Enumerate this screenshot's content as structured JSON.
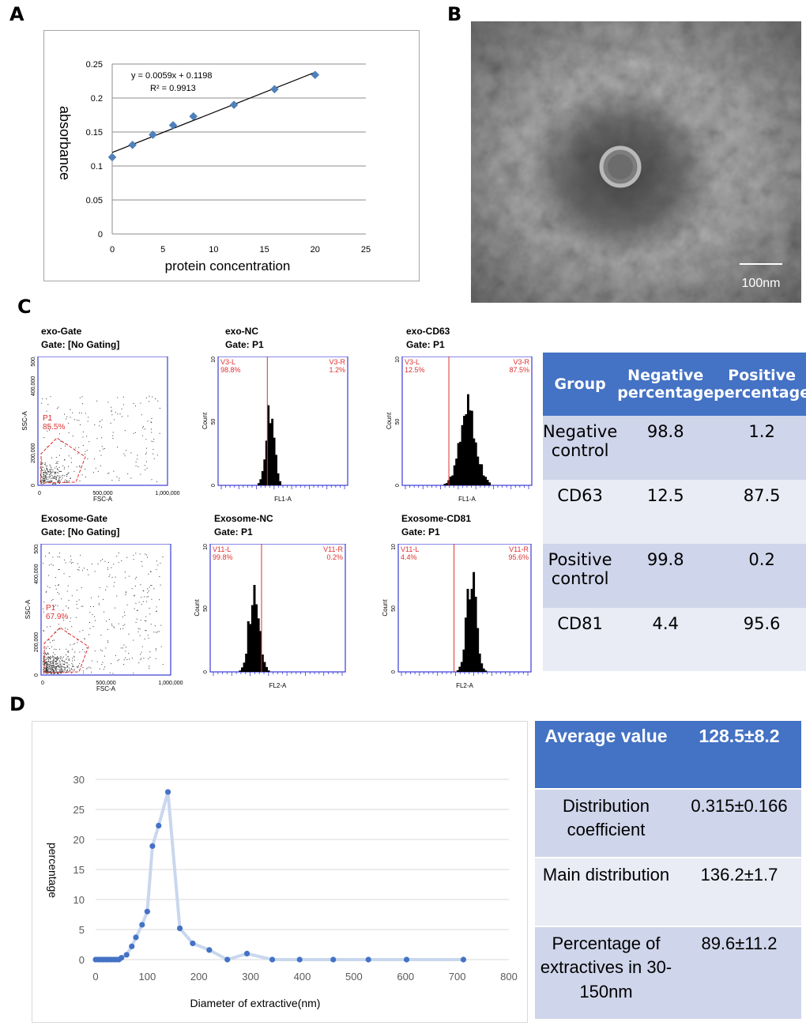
{
  "panels": {
    "a": "A",
    "b": "B",
    "c": "C",
    "d": "D"
  },
  "panel_a": {
    "chart_data": {
      "type": "scatter",
      "title": "",
      "xlabel": "protein concentration",
      "ylabel": "absorbance",
      "xlim": [
        0,
        25
      ],
      "ylim": [
        0,
        0.25
      ],
      "xticks": [
        "0",
        "5",
        "10",
        "15",
        "20",
        "25"
      ],
      "yticks": [
        "0",
        "0.05",
        "0.1",
        "0.15",
        "0.2",
        "0.25"
      ],
      "grid": "horizontal",
      "points": [
        [
          0,
          0.113
        ],
        [
          2,
          0.131
        ],
        [
          4,
          0.146
        ],
        [
          6,
          0.16
        ],
        [
          8,
          0.173
        ],
        [
          12,
          0.19
        ],
        [
          16,
          0.213
        ],
        [
          20,
          0.234
        ]
      ],
      "trendline": {
        "slope": 0.0059,
        "intercept": 0.1198
      },
      "equation": "y = 0.0059x + 0.1198",
      "r_squared": "R² = 0.9913",
      "marker_color": "#4f81bd"
    }
  },
  "panel_b": {
    "scale_bar_label": "100nm"
  },
  "panel_c": {
    "plots": [
      {
        "title": "exo-Gate",
        "subtitle": "Gate: [No Gating]",
        "kind": "scatter",
        "gate_label": "P1",
        "gate_pct": "85.5%",
        "xlabel": "FSC-A",
        "ylabel": "SSC-A",
        "xticks": [
          "0",
          "500,000",
          "1,000,000"
        ],
        "yticks": [
          "0",
          "200,000",
          "400,000",
          "500,000"
        ],
        "density": 0.45
      },
      {
        "title": "exo-NC",
        "subtitle": "Gate: P1",
        "kind": "histogram",
        "left_label": "V3-L",
        "left_pct": "98.8%",
        "right_label": "V3-R",
        "right_pct": "1.2%",
        "xlabel": "FL1-A",
        "ylabel": "Count",
        "yticks": [
          "0",
          "50",
          "100"
        ],
        "peak_pos": 0.38,
        "peak_height": 0.62,
        "width": 0.035
      },
      {
        "title": "exo-CD63",
        "subtitle": "Gate: P1",
        "kind": "histogram",
        "left_label": "V3-L",
        "left_pct": "12.5%",
        "right_label": "V3-R",
        "right_pct": "87.5%",
        "xlabel": "FL1-A",
        "ylabel": "Count",
        "yticks": [
          "0",
          "50",
          "100"
        ],
        "peak_pos": 0.5,
        "peak_height": 0.6,
        "width": 0.07
      },
      {
        "title": "Exosome-Gate",
        "subtitle": "Gate: [No Gating]",
        "kind": "scatter",
        "gate_label": "P1",
        "gate_pct": "67.9%",
        "xlabel": "FSC-A",
        "ylabel": "SSC-A",
        "xticks": [
          "0",
          "500,000",
          "1,000,000"
        ],
        "yticks": [
          "0",
          "200,000",
          "400,000",
          "500,000"
        ],
        "density": 0.8
      },
      {
        "title": "Exosome-NC",
        "subtitle": "Gate: P1",
        "kind": "histogram",
        "left_label": "V11-L",
        "left_pct": "99.8%",
        "right_label": "V11-R",
        "right_pct": "0.2%",
        "xlabel": "FL2-A",
        "ylabel": "Count",
        "yticks": [
          "0",
          "50",
          "100"
        ],
        "peak_pos": 0.3,
        "peak_height": 0.7,
        "width": 0.04
      },
      {
        "title": "Exosome-CD81",
        "subtitle": "Gate: P1",
        "kind": "histogram",
        "left_label": "V11-L",
        "left_pct": "4.4%",
        "right_label": "V11-R",
        "right_pct": "95.6%",
        "xlabel": "FL2-A",
        "ylabel": "Count",
        "yticks": [
          "0",
          "50",
          "100"
        ],
        "peak_pos": 0.55,
        "peak_height": 0.75,
        "width": 0.04
      }
    ],
    "table": {
      "headers": [
        "Group",
        "Negative percentage",
        "Positive percentage"
      ],
      "rows": [
        {
          "group": "Negative control",
          "neg": "98.8",
          "pos": "1.2"
        },
        {
          "group": "CD63",
          "neg": "12.5",
          "pos": "87.5"
        },
        {
          "group": "Positive control",
          "neg": "99.8",
          "pos": "0.2"
        },
        {
          "group": "CD81",
          "neg": "4.4",
          "pos": "95.6"
        }
      ]
    }
  },
  "panel_d": {
    "chart_data": {
      "type": "line",
      "title": "",
      "xlabel": "Diameter of extractive(nm)",
      "ylabel": "percentage",
      "xlim": [
        0,
        800
      ],
      "ylim": [
        0,
        30
      ],
      "xticks": [
        "0",
        "100",
        "200",
        "300",
        "400",
        "500",
        "600",
        "700",
        "800"
      ],
      "yticks": [
        "0",
        "5",
        "10",
        "15",
        "20",
        "25",
        "30"
      ],
      "grid": "horizontal",
      "x": [
        0,
        5,
        10,
        15,
        20,
        25,
        30,
        35,
        40,
        45,
        50,
        60,
        70,
        78,
        90,
        100,
        110,
        122,
        140,
        163,
        188,
        220,
        255,
        293,
        342,
        395,
        460,
        528,
        602,
        712
      ],
      "y": [
        0,
        0,
        0,
        0,
        0,
        0,
        0,
        0,
        0,
        0,
        0.3,
        0.8,
        2.2,
        3.7,
        5.8,
        8,
        18.9,
        22.3,
        27.9,
        5.2,
        2.7,
        1.6,
        0,
        1,
        0,
        0,
        0,
        0,
        0,
        0
      ],
      "line_color": "#c9d7ee",
      "marker_color": "#4472c4"
    },
    "table": {
      "rows": [
        {
          "label": "Average value",
          "value": "128.5±8.2"
        },
        {
          "label": "Distribution coefficient",
          "value": "0.315±0.166"
        },
        {
          "label": "Main distribution",
          "value": "136.2±1.7"
        },
        {
          "label": "Percentage of extractives in 30-150nm",
          "value": "89.6±11.2"
        }
      ]
    }
  }
}
